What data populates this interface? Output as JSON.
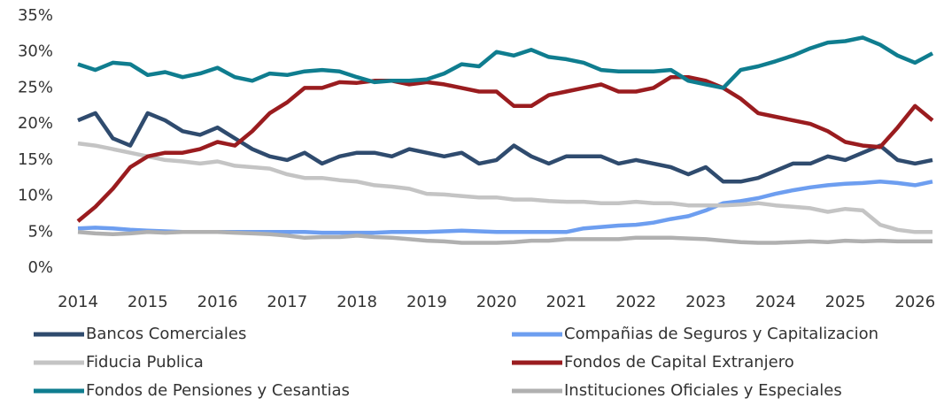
{
  "chart_data": {
    "type": "line",
    "x": [
      2014,
      2014.25,
      2014.5,
      2014.75,
      2015,
      2015.25,
      2015.5,
      2015.75,
      2016,
      2016.25,
      2016.5,
      2016.75,
      2017,
      2017.25,
      2017.5,
      2017.75,
      2018,
      2018.25,
      2018.5,
      2018.75,
      2019,
      2019.25,
      2019.5,
      2019.75,
      2020,
      2020.25,
      2020.5,
      2020.75,
      2021,
      2021.25,
      2021.5,
      2021.75,
      2022,
      2022.25,
      2022.5,
      2022.75,
      2023,
      2023.25,
      2023.5,
      2023.75,
      2024,
      2024.25,
      2024.5,
      2024.75,
      2025,
      2025.25,
      2025.5,
      2025.75,
      2026,
      2026.25
    ],
    "series": [
      {
        "name": "Bancos Comerciales",
        "color": "#2f4b6e",
        "values": [
          20.5,
          21.5,
          18,
          17,
          21.5,
          20.5,
          19,
          18.5,
          19.5,
          18,
          16.5,
          15.5,
          15,
          16,
          14.5,
          15.5,
          16,
          16,
          15.5,
          16.5,
          16,
          15.5,
          16,
          14.5,
          15,
          17,
          15.5,
          14.5,
          15.5,
          15.5,
          15.5,
          14.5,
          15,
          14.5,
          14,
          13,
          14,
          12,
          12,
          12.5,
          13.5,
          14.5,
          14.5,
          15.5,
          15,
          16,
          17,
          15,
          14.5,
          15
        ]
      },
      {
        "name": "Compañias de Seguros y Capitalizacion",
        "color": "#6d9ef0",
        "values": [
          5.5,
          5.6,
          5.5,
          5.3,
          5.2,
          5.1,
          5,
          5,
          5,
          5,
          5,
          5,
          5,
          5,
          4.9,
          4.9,
          4.9,
          4.9,
          5,
          5,
          5,
          5.1,
          5.2,
          5.1,
          5,
          5,
          5,
          5,
          5,
          5.5,
          5.7,
          5.9,
          6,
          6.3,
          6.8,
          7.2,
          8,
          9,
          9.3,
          9.7,
          10.3,
          10.8,
          11.2,
          11.5,
          11.7,
          11.8,
          12,
          11.8,
          11.5,
          12
        ]
      },
      {
        "name": "Fiducia Publica",
        "color": "#c4c4c4",
        "values": [
          17.3,
          17,
          16.5,
          16,
          15.5,
          15,
          14.8,
          14.5,
          14.8,
          14.2,
          14,
          13.8,
          13,
          12.5,
          12.5,
          12.2,
          12,
          11.5,
          11.3,
          11,
          10.3,
          10.2,
          10,
          9.8,
          9.8,
          9.5,
          9.5,
          9.3,
          9.2,
          9.2,
          9,
          9,
          9.2,
          9,
          9,
          8.7,
          8.7,
          8.7,
          8.8,
          9,
          8.7,
          8.5,
          8.3,
          7.8,
          8.2,
          8,
          6,
          5.3,
          5,
          5
        ]
      },
      {
        "name": "Fondos de Capital Extranjero",
        "color": "#9a1c1f",
        "values": [
          6.5,
          8.5,
          11,
          14,
          15.5,
          16,
          16,
          16.5,
          17.5,
          17,
          19,
          21.5,
          23,
          25,
          25,
          25.8,
          25.7,
          26,
          26,
          25.5,
          25.8,
          25.5,
          25,
          24.5,
          24.5,
          22.5,
          22.5,
          24,
          24.5,
          25,
          25.5,
          24.5,
          24.5,
          25,
          26.5,
          26.5,
          26,
          25,
          23.5,
          21.5,
          21,
          20.5,
          20,
          19,
          17.5,
          17,
          16.8,
          19.5,
          22.5,
          20.5
        ]
      },
      {
        "name": "Fondos de Pensiones y Cesantias",
        "color": "#0f7d8f",
        "values": [
          28.3,
          27.5,
          28.5,
          28.3,
          26.8,
          27.2,
          26.5,
          27,
          27.8,
          26.5,
          26,
          27,
          26.8,
          27.3,
          27.5,
          27.3,
          26.5,
          25.8,
          26,
          26,
          26.2,
          27,
          28.3,
          28,
          30,
          29.5,
          30.3,
          29.3,
          29,
          28.5,
          27.5,
          27.3,
          27.3,
          27.3,
          27.5,
          26,
          25.5,
          25,
          27.5,
          28,
          28.7,
          29.5,
          30.5,
          31.3,
          31.5,
          32,
          31,
          29.5,
          28.5,
          29.8
        ]
      },
      {
        "name": "Instituciones Oficiales y Especiales",
        "color": "#b0b0b0",
        "values": [
          5,
          4.8,
          4.7,
          4.8,
          5,
          4.9,
          5,
          5,
          5,
          4.9,
          4.8,
          4.7,
          4.5,
          4.2,
          4.3,
          4.3,
          4.5,
          4.3,
          4.2,
          4,
          3.8,
          3.7,
          3.5,
          3.5,
          3.5,
          3.6,
          3.8,
          3.8,
          4,
          4,
          4,
          4,
          4.2,
          4.2,
          4.2,
          4.1,
          4,
          3.8,
          3.6,
          3.5,
          3.5,
          3.6,
          3.7,
          3.6,
          3.8,
          3.7,
          3.8,
          3.7,
          3.7,
          3.7
        ]
      }
    ],
    "xlim": [
      2014,
      2026.25
    ],
    "xticks": [
      2014,
      2015,
      2016,
      2017,
      2018,
      2019,
      2020,
      2021,
      2022,
      2023,
      2024,
      2025,
      2026
    ],
    "ylim": [
      0,
      35
    ],
    "yticks": [
      {
        "value": 0,
        "label": "0%"
      },
      {
        "value": 5,
        "label": "5%"
      },
      {
        "value": 10,
        "label": "10%"
      },
      {
        "value": 15,
        "label": "15%"
      },
      {
        "value": 20,
        "label": "20%"
      },
      {
        "value": 25,
        "label": "25%"
      },
      {
        "value": 30,
        "label": "30%"
      },
      {
        "value": 35,
        "label": "35%"
      }
    ],
    "grid": false,
    "legend": "bottom"
  }
}
